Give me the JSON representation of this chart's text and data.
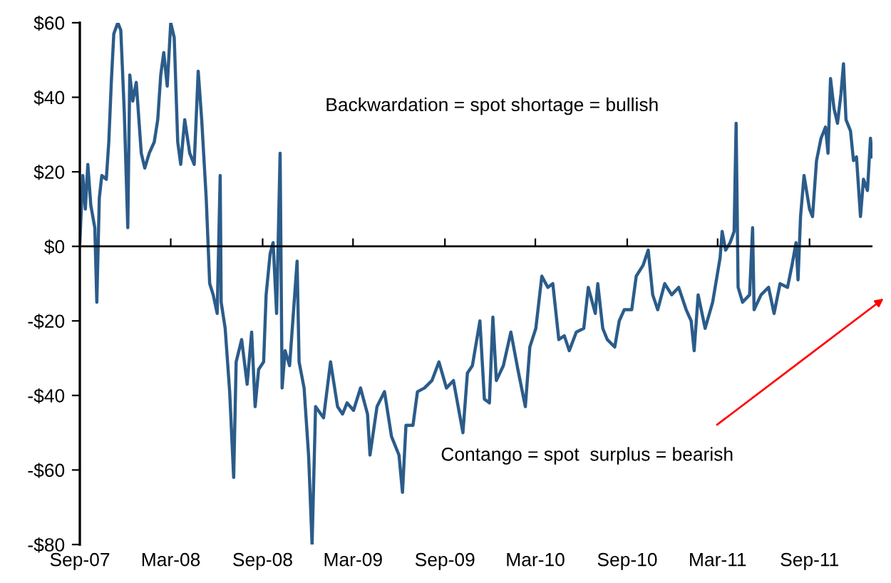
{
  "chart_data": {
    "type": "line",
    "x": [
      "2007-09-01",
      "2007-09-07",
      "2007-09-12",
      "2007-09-17",
      "2007-09-23",
      "2007-10-01",
      "2007-10-05",
      "2007-10-10",
      "2007-10-15",
      "2007-10-24",
      "2007-10-29",
      "2007-11-03",
      "2007-11-08",
      "2007-11-16",
      "2007-11-22",
      "2007-11-29",
      "2007-12-06",
      "2007-12-10",
      "2007-12-16",
      "2007-12-23",
      "2008-01-02",
      "2008-01-09",
      "2008-01-18",
      "2008-01-28",
      "2008-02-04",
      "2008-02-10",
      "2008-02-16",
      "2008-02-23",
      "2008-03-01",
      "2008-03-08",
      "2008-03-15",
      "2008-03-21",
      "2008-03-29",
      "2008-04-08",
      "2008-04-17",
      "2008-04-25",
      "2008-05-02",
      "2008-05-11",
      "2008-05-18",
      "2008-05-25",
      "2008-06-02",
      "2008-06-08",
      "2008-06-10",
      "2008-06-18",
      "2008-06-27",
      "2008-07-05",
      "2008-07-10",
      "2008-07-21",
      "2008-08-01",
      "2008-08-10",
      "2008-08-17",
      "2008-08-24",
      "2008-09-03",
      "2008-09-08",
      "2008-09-16",
      "2008-09-22",
      "2008-09-29",
      "2008-10-06",
      "2008-10-10",
      "2008-10-16",
      "2008-10-25",
      "2008-11-09",
      "2008-11-13",
      "2008-11-23",
      "2008-12-02",
      "2008-12-09",
      "2008-12-16",
      "2009-01-01",
      "2009-01-15",
      "2009-01-29",
      "2009-02-08",
      "2009-02-17",
      "2009-03-02",
      "2009-03-16",
      "2009-03-30",
      "2009-04-04",
      "2009-04-18",
      "2009-05-03",
      "2009-05-17",
      "2009-06-01",
      "2009-06-08",
      "2009-06-15",
      "2009-06-29",
      "2009-07-08",
      "2009-07-22",
      "2009-08-06",
      "2009-08-20",
      "2009-09-04",
      "2009-09-18",
      "2009-10-07",
      "2009-10-16",
      "2009-10-26",
      "2009-11-10",
      "2009-11-19",
      "2009-11-29",
      "2009-12-06",
      "2009-12-13",
      "2009-12-27",
      "2010-01-11",
      "2010-01-25",
      "2010-02-09",
      "2010-02-18",
      "2010-03-02",
      "2010-03-14",
      "2010-03-26",
      "2010-04-05",
      "2010-04-17",
      "2010-04-28",
      "2010-05-08",
      "2010-05-22",
      "2010-06-06",
      "2010-06-15",
      "2010-06-29",
      "2010-07-04",
      "2010-07-14",
      "2010-07-23",
      "2010-08-07",
      "2010-08-16",
      "2010-08-26",
      "2010-09-10",
      "2010-09-19",
      "2010-10-03",
      "2010-10-13",
      "2010-10-22",
      "2010-11-01",
      "2010-11-15",
      "2010-11-29",
      "2010-12-13",
      "2010-12-28",
      "2011-01-07",
      "2011-01-13",
      "2011-01-21",
      "2011-02-04",
      "2011-02-19",
      "2011-03-06",
      "2011-03-10",
      "2011-03-17",
      "2011-03-26",
      "2011-04-03",
      "2011-04-07",
      "2011-04-11",
      "2011-04-20",
      "2011-05-04",
      "2011-05-10",
      "2011-05-13",
      "2011-05-27",
      "2011-06-11",
      "2011-06-22",
      "2011-07-04",
      "2011-07-19",
      "2011-07-28",
      "2011-08-05",
      "2011-08-09",
      "2011-08-14",
      "2011-08-21",
      "2011-09-01",
      "2011-09-07",
      "2011-09-15",
      "2011-09-24",
      "2011-10-03",
      "2011-10-08",
      "2011-10-13",
      "2011-10-20",
      "2011-10-27",
      "2011-11-03",
      "2011-11-08",
      "2011-11-13",
      "2011-11-22",
      "2011-11-28",
      "2011-12-04",
      "2011-12-12",
      "2011-12-18",
      "2011-12-26",
      "2012-01-01",
      "2012-01-04"
    ],
    "series": [
      {
        "color": "#2b5c8a",
        "values": [
          1,
          19,
          10,
          22,
          11,
          5,
          -15,
          13,
          19,
          18,
          28,
          44,
          57,
          60,
          58,
          36,
          5,
          46,
          39,
          44,
          25,
          21,
          25,
          28,
          34,
          46,
          52,
          43,
          60,
          56,
          28,
          22,
          34,
          25,
          22,
          47,
          34,
          13,
          -10,
          -13,
          -18,
          19,
          -15,
          -22,
          -39,
          -62,
          -31,
          -25,
          -37,
          -23,
          -43,
          -33,
          -31,
          -13,
          -2,
          1,
          -18,
          25,
          -38,
          -28,
          -32,
          -4,
          -31,
          -38,
          -56,
          -80,
          -43,
          -46,
          -31,
          -43,
          -45,
          -42,
          -44,
          -38,
          -45,
          -56,
          -43,
          -39,
          -51,
          -56,
          -66,
          -48,
          -48,
          -39,
          -38,
          -36,
          -31,
          -38,
          -36,
          -50,
          -34,
          -32,
          -20,
          -41,
          -42,
          -19,
          -36,
          -32,
          -23,
          -33,
          -43,
          -27,
          -22,
          -8,
          -11,
          -10,
          -25,
          -24,
          -28,
          -23,
          -22,
          -11,
          -18,
          -10,
          -22,
          -25,
          -27,
          -20,
          -17,
          -17,
          -8,
          -5,
          -1,
          -13,
          -17,
          -10,
          -13,
          -11,
          -17,
          -20,
          -28,
          -13,
          -22,
          -15,
          -3,
          4,
          -1,
          1,
          4,
          33,
          -11,
          -15,
          -13,
          5,
          -17,
          -13,
          -11,
          -18,
          -10,
          -11,
          -5,
          1,
          -9,
          8,
          19,
          10,
          8,
          23,
          29,
          32,
          25,
          45,
          37,
          33,
          41,
          49,
          34,
          31,
          23,
          24,
          8,
          18,
          15,
          29,
          24
        ]
      }
    ],
    "xlim": [
      "2007-09-01",
      "2012-01-05"
    ],
    "xticks": [
      {
        "value": "2007-09-01",
        "label": "Sep-07"
      },
      {
        "value": "2008-03-01",
        "label": "Mar-08"
      },
      {
        "value": "2008-09-01",
        "label": "Sep-08"
      },
      {
        "value": "2009-03-01",
        "label": "Mar-09"
      },
      {
        "value": "2009-09-01",
        "label": "Sep-09"
      },
      {
        "value": "2010-03-01",
        "label": "Mar-10"
      },
      {
        "value": "2010-09-01",
        "label": "Sep-10"
      },
      {
        "value": "2011-03-01",
        "label": "Mar-11"
      },
      {
        "value": "2011-09-01",
        "label": "Sep-11"
      }
    ],
    "ylim": [
      -80,
      60
    ],
    "yticks": [
      {
        "value": -80,
        "label": "-$80"
      },
      {
        "value": -60,
        "label": "-$60"
      },
      {
        "value": -40,
        "label": "-$40"
      },
      {
        "value": -20,
        "label": "-$20"
      },
      {
        "value": 0,
        "label": "$0"
      },
      {
        "value": 20,
        "label": "$20"
      },
      {
        "value": 40,
        "label": "$40"
      },
      {
        "value": 60,
        "label": "$60"
      }
    ],
    "annotations": [
      "Backwardation = spot shortage = bullish",
      "Contango = spot  surplus = bearish"
    ],
    "ref_lines": [
      {
        "axis": "y",
        "value": 0,
        "color": "#000000"
      }
    ],
    "legend": false
  }
}
